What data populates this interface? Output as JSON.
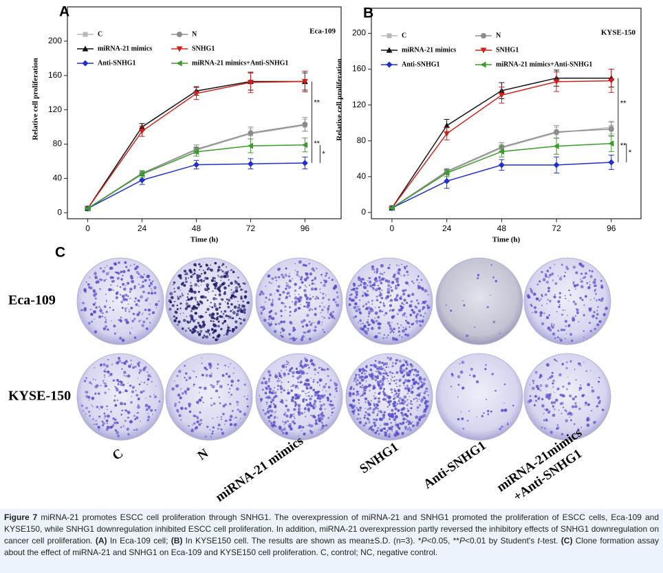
{
  "chart_data": [
    {
      "type": "line",
      "label": "A",
      "title": "Eca-109",
      "x_label": "Time (h)",
      "y_label": "Relative cell proliferation",
      "x": [
        0,
        24,
        48,
        72,
        96
      ],
      "xlim": [
        -9,
        112
      ],
      "xticks": [
        0,
        24,
        48,
        72,
        96
      ],
      "ylim": [
        -7,
        240
      ],
      "yticks": [
        0,
        40,
        80,
        120,
        160,
        200
      ],
      "grid": false,
      "legend": "top",
      "series": [
        {
          "name": "C",
          "color": "#b8b8b8",
          "marker": "square",
          "values": [
            5,
            46,
            73,
            92,
            102
          ],
          "errors": [
            1,
            3,
            4,
            6,
            7
          ]
        },
        {
          "name": "N",
          "color": "#8c8c8c",
          "marker": "circle",
          "values": [
            5,
            46,
            74,
            93,
            103
          ],
          "errors": [
            1,
            3,
            5,
            7,
            8
          ]
        },
        {
          "name": "miRNA-21 mimics",
          "color": "#111111",
          "marker": "triangle-up",
          "values": [
            5,
            100,
            142,
            153,
            153
          ],
          "errors": [
            1,
            4,
            5,
            10,
            10
          ]
        },
        {
          "name": "SNHG1",
          "color": "#d0201c",
          "marker": "triangle-down",
          "values": [
            5,
            95,
            139,
            152,
            153
          ],
          "errors": [
            1,
            6,
            7,
            12,
            12
          ]
        },
        {
          "name": "Anti-SNHG1",
          "color": "#1f2fd0",
          "marker": "diamond",
          "values": [
            5,
            38,
            56,
            57,
            58
          ],
          "errors": [
            1,
            5,
            5,
            6,
            7
          ]
        },
        {
          "name": "miRNA-21 mimics+Anti-SNHG1",
          "color": "#3a9a2a",
          "marker": "triangle-left",
          "values": [
            5,
            45,
            71,
            78,
            79
          ],
          "errors": [
            1,
            4,
            5,
            8,
            8
          ]
        }
      ],
      "annotations": [
        "**",
        "**",
        "*"
      ]
    },
    {
      "type": "line",
      "label": "B",
      "title": "KYSE-150",
      "x_label": "Time (h)",
      "y_label": "Relative cell proliferation",
      "x": [
        0,
        24,
        48,
        72,
        96
      ],
      "xlim": [
        -9,
        109
      ],
      "xticks": [
        0,
        24,
        48,
        72,
        96
      ],
      "ylim": [
        -7,
        228
      ],
      "yticks": [
        0,
        40,
        80,
        120,
        160,
        200
      ],
      "grid": false,
      "legend": "top",
      "series": [
        {
          "name": "C",
          "color": "#b8b8b8",
          "marker": "square",
          "values": [
            5,
            45,
            72,
            89,
            95
          ],
          "errors": [
            1,
            3,
            4,
            6,
            7
          ]
        },
        {
          "name": "N",
          "color": "#8c8c8c",
          "marker": "circle",
          "values": [
            5,
            46,
            73,
            90,
            93
          ],
          "errors": [
            1,
            3,
            5,
            7,
            8
          ]
        },
        {
          "name": "miRNA-21 mimics",
          "color": "#111111",
          "marker": "triangle-up",
          "values": [
            5,
            97,
            136,
            150,
            150
          ],
          "errors": [
            1,
            7,
            9,
            9,
            10
          ]
        },
        {
          "name": "SNHG1",
          "color": "#d0201c",
          "marker": "triangle-down",
          "values": [
            5,
            88,
            131,
            146,
            147
          ],
          "errors": [
            1,
            7,
            9,
            11,
            13
          ]
        },
        {
          "name": "Anti-SNHG1",
          "color": "#1f2fd0",
          "marker": "diamond",
          "values": [
            5,
            35,
            53,
            53,
            56
          ],
          "errors": [
            1,
            8,
            6,
            9,
            8
          ]
        },
        {
          "name": "miRNA-21 mimics+Anti-SNHG1",
          "color": "#3a9a2a",
          "marker": "triangle-left",
          "values": [
            5,
            44,
            68,
            74,
            77
          ],
          "errors": [
            1,
            4,
            6,
            9,
            9
          ]
        }
      ],
      "annotations": [
        "**",
        "**",
        "*"
      ]
    }
  ],
  "panel_c": {
    "label": "C",
    "rows": [
      "Eca-109",
      "KYSE-150"
    ],
    "columns": [
      [
        "C"
      ],
      [
        "N"
      ],
      [
        "miRNA-21 mimics"
      ],
      [
        "SNHG1"
      ],
      [
        "Anti-SNHG1"
      ],
      [
        "miRNA-21mimics",
        "+Anti-SNHG1"
      ]
    ]
  },
  "caption": {
    "segments": [
      {
        "text": "Figure 7",
        "style": "bold"
      },
      {
        "text": " miRNA-21 promotes ESCC cell proliferation through SNHG1. The overexpression of miRNA-21 and SNHG1 promoted the proliferation of ESCC cells, Eca-109 and KYSE150, while SNHG1 downregulation inhibited ESCC cell proliferation. In addition, miRNA-21 overexpression partly reversed the inhibitory effects of SNHG1 downregulation on cancer cell proliferation. ",
        "style": "normal"
      },
      {
        "text": "(A)",
        "style": "bold"
      },
      {
        "text": " In Eca-109 cell; ",
        "style": "normal"
      },
      {
        "text": "(B)",
        "style": "bold"
      },
      {
        "text": " In KYSE150 cell. The results are shown as mean±S.D. (n=3). *",
        "style": "normal"
      },
      {
        "text": "P",
        "style": "italic"
      },
      {
        "text": "<0.05, **",
        "style": "normal"
      },
      {
        "text": "P",
        "style": "italic"
      },
      {
        "text": "<0.01 by Student's ",
        "style": "normal"
      },
      {
        "text": "t",
        "style": "italic"
      },
      {
        "text": "-test. ",
        "style": "normal"
      },
      {
        "text": "(C)",
        "style": "bold"
      },
      {
        "text": " Clone formation assay about the effect of miRNA-21 and SNHG1 on Eca-109 and KYSE150 cell proliferation. C, control; NC, negative control.",
        "style": "normal"
      }
    ]
  }
}
